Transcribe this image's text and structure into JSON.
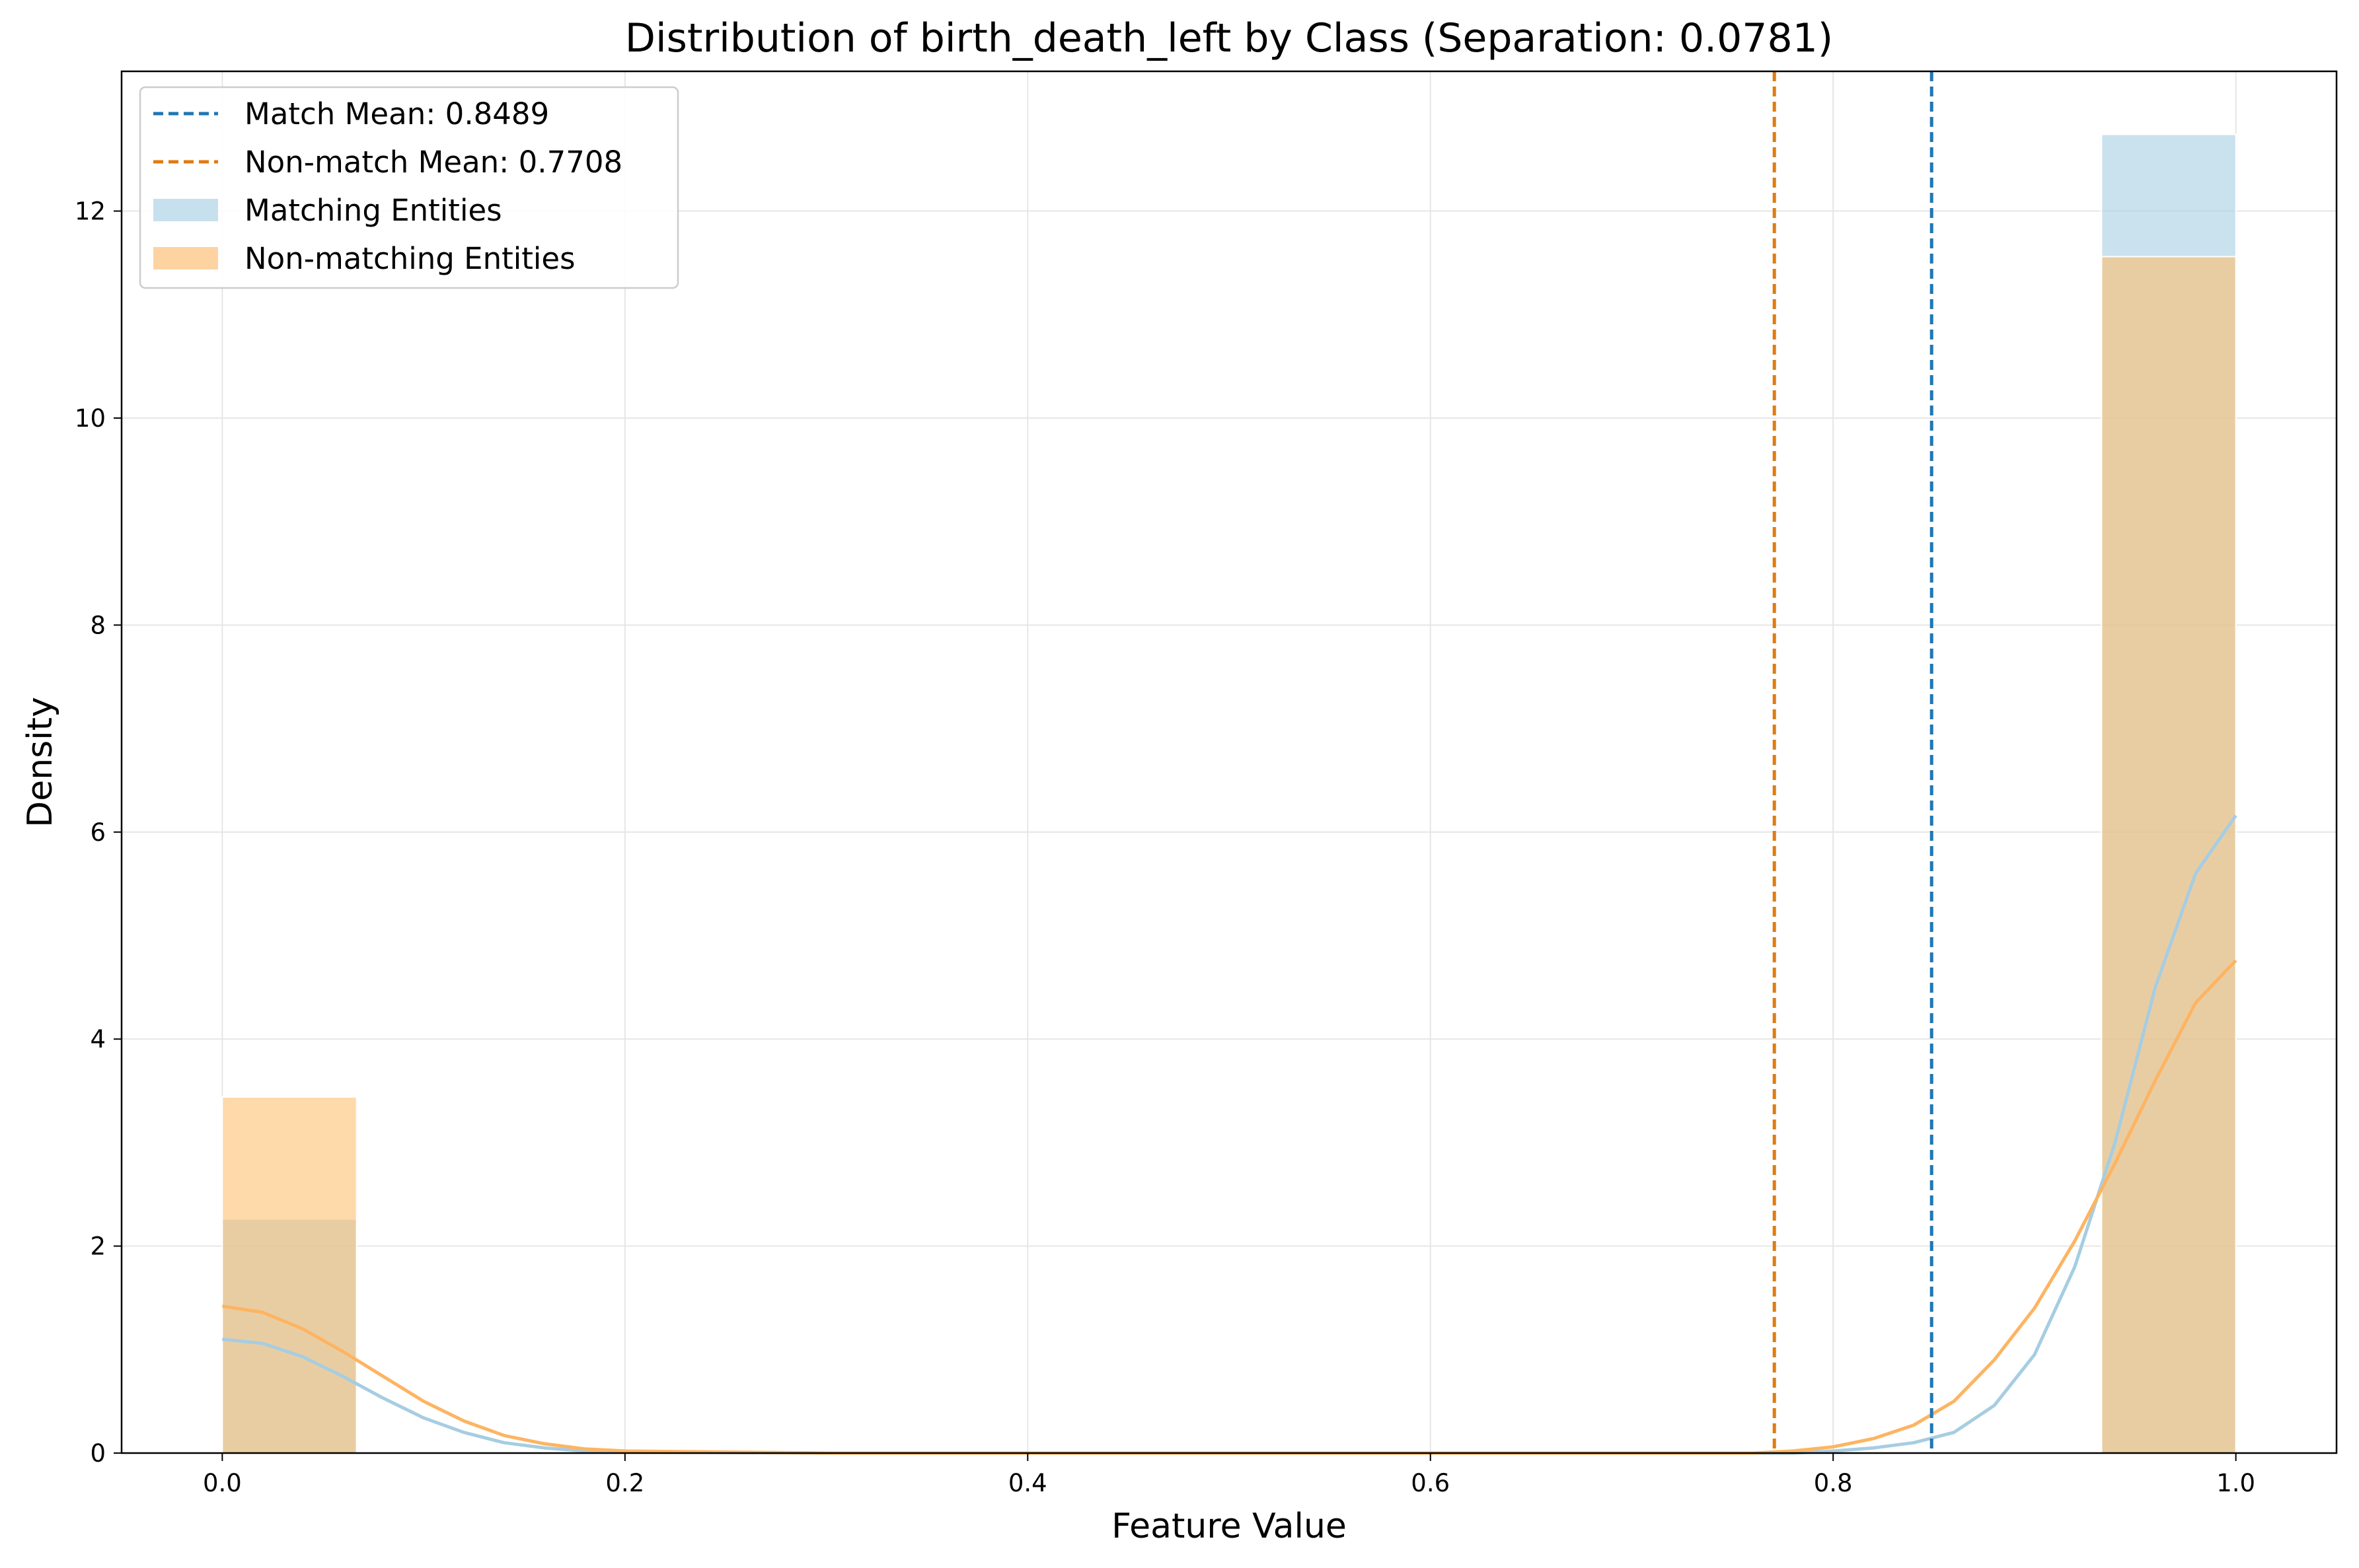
{
  "chart_data": {
    "type": "bar",
    "title": "Distribution of birth_death_left by Class (Separation: 0.0781)",
    "xlabel": "Feature Value",
    "ylabel": "Density",
    "xlim": [
      -0.05,
      1.05
    ],
    "ylim": [
      0,
      13.35
    ],
    "xticks": [
      0.0,
      0.2,
      0.4,
      0.6,
      0.8,
      1.0
    ],
    "xtick_labels": [
      "0.0",
      "0.2",
      "0.4",
      "0.6",
      "0.8",
      "1.0"
    ],
    "yticks": [
      0,
      2,
      4,
      6,
      8,
      10,
      12
    ],
    "ytick_labels": [
      "0",
      "2",
      "4",
      "6",
      "8",
      "10",
      "12"
    ],
    "grid": true,
    "legend_position": "top-left",
    "bin_width": 0.0667,
    "series": [
      {
        "name": "Matching Entities",
        "kind": "histogram",
        "color": "#a6cde2",
        "opacity": 0.6,
        "bins": [
          {
            "x0": 0.0,
            "x1": 0.0667,
            "value": 2.26
          },
          {
            "x0": 0.9333,
            "x1": 1.0,
            "value": 12.74
          }
        ]
      },
      {
        "name": "Non-matching Entities",
        "kind": "histogram",
        "color": "#fdbf6f",
        "opacity": 0.6,
        "bins": [
          {
            "x0": 0.0,
            "x1": 0.0667,
            "value": 3.44
          },
          {
            "x0": 0.9333,
            "x1": 1.0,
            "value": 11.56
          }
        ]
      },
      {
        "kind": "kde",
        "color": "#a6cde2",
        "x": [
          0.0,
          0.02,
          0.04,
          0.06,
          0.08,
          0.1,
          0.12,
          0.14,
          0.16,
          0.18,
          0.2,
          0.3,
          0.5,
          0.7,
          0.78,
          0.8,
          0.82,
          0.84,
          0.86,
          0.88,
          0.9,
          0.92,
          0.94,
          0.96,
          0.98,
          1.0
        ],
        "y": [
          1.1,
          1.06,
          0.93,
          0.74,
          0.53,
          0.34,
          0.2,
          0.1,
          0.05,
          0.02,
          0.01,
          0.0,
          0.0,
          0.0,
          0.0,
          0.02,
          0.05,
          0.1,
          0.2,
          0.46,
          0.95,
          1.8,
          3.0,
          4.5,
          5.6,
          6.16
        ]
      },
      {
        "kind": "kde",
        "color": "#fdb462",
        "x": [
          0.0,
          0.02,
          0.04,
          0.06,
          0.08,
          0.1,
          0.12,
          0.14,
          0.16,
          0.18,
          0.2,
          0.3,
          0.5,
          0.7,
          0.76,
          0.78,
          0.8,
          0.82,
          0.84,
          0.86,
          0.88,
          0.9,
          0.92,
          0.94,
          0.96,
          0.98,
          1.0
        ],
        "y": [
          1.42,
          1.36,
          1.2,
          0.98,
          0.74,
          0.5,
          0.31,
          0.17,
          0.09,
          0.04,
          0.02,
          0.0,
          0.0,
          0.0,
          0.0,
          0.02,
          0.06,
          0.14,
          0.27,
          0.5,
          0.9,
          1.4,
          2.05,
          2.8,
          3.6,
          4.35,
          4.76
        ]
      },
      {
        "name": "Match Mean: 0.8489",
        "kind": "vline",
        "x": 0.8489,
        "color": "#1f77b4",
        "style": "dashed"
      },
      {
        "name": "Non-match Mean: 0.7708",
        "kind": "vline",
        "x": 0.7708,
        "color": "#e07b0f",
        "style": "dashed"
      }
    ],
    "legend": [
      {
        "label": "Match Mean: 0.8489",
        "marker": "dashed-line",
        "color": "#1f77b4"
      },
      {
        "label": "Non-match Mean: 0.7708",
        "marker": "dashed-line",
        "color": "#e07b0f"
      },
      {
        "label": "Matching Entities",
        "marker": "patch",
        "color": "#c6e0ee"
      },
      {
        "label": "Non-matching Entities",
        "marker": "patch",
        "color": "#fdd3a2"
      }
    ]
  }
}
